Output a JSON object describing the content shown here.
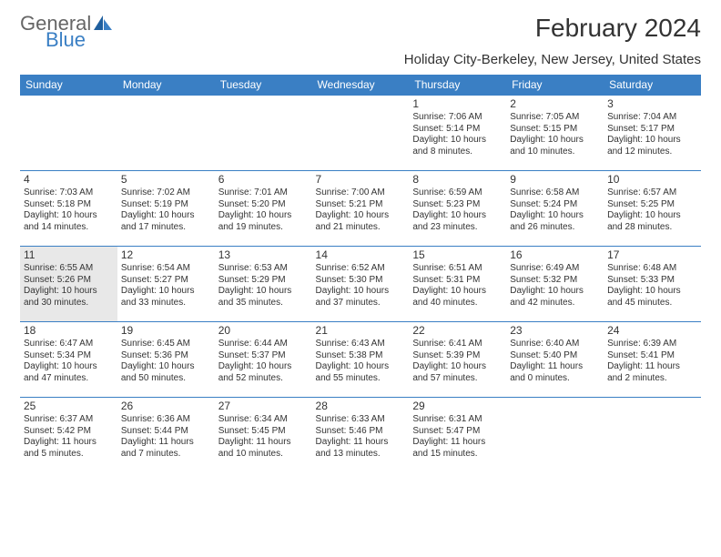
{
  "logo": {
    "part1": "General",
    "part2": "Blue"
  },
  "title": "February 2024",
  "subtitle": "Holiday City-Berkeley, New Jersey, United States",
  "colors": {
    "header_bg": "#3a7fc4",
    "header_text": "#ffffff",
    "border": "#3a7fc4",
    "today_bg": "#e8e8e8",
    "text": "#333333"
  },
  "day_headers": [
    "Sunday",
    "Monday",
    "Tuesday",
    "Wednesday",
    "Thursday",
    "Friday",
    "Saturday"
  ],
  "weeks": [
    [
      null,
      null,
      null,
      null,
      {
        "n": "1",
        "sr": "7:06 AM",
        "ss": "5:14 PM",
        "dl": "10 hours and 8 minutes."
      },
      {
        "n": "2",
        "sr": "7:05 AM",
        "ss": "5:15 PM",
        "dl": "10 hours and 10 minutes."
      },
      {
        "n": "3",
        "sr": "7:04 AM",
        "ss": "5:17 PM",
        "dl": "10 hours and 12 minutes."
      }
    ],
    [
      {
        "n": "4",
        "sr": "7:03 AM",
        "ss": "5:18 PM",
        "dl": "10 hours and 14 minutes."
      },
      {
        "n": "5",
        "sr": "7:02 AM",
        "ss": "5:19 PM",
        "dl": "10 hours and 17 minutes."
      },
      {
        "n": "6",
        "sr": "7:01 AM",
        "ss": "5:20 PM",
        "dl": "10 hours and 19 minutes."
      },
      {
        "n": "7",
        "sr": "7:00 AM",
        "ss": "5:21 PM",
        "dl": "10 hours and 21 minutes."
      },
      {
        "n": "8",
        "sr": "6:59 AM",
        "ss": "5:23 PM",
        "dl": "10 hours and 23 minutes."
      },
      {
        "n": "9",
        "sr": "6:58 AM",
        "ss": "5:24 PM",
        "dl": "10 hours and 26 minutes."
      },
      {
        "n": "10",
        "sr": "6:57 AM",
        "ss": "5:25 PM",
        "dl": "10 hours and 28 minutes."
      }
    ],
    [
      {
        "n": "11",
        "sr": "6:55 AM",
        "ss": "5:26 PM",
        "dl": "10 hours and 30 minutes.",
        "today": true
      },
      {
        "n": "12",
        "sr": "6:54 AM",
        "ss": "5:27 PM",
        "dl": "10 hours and 33 minutes."
      },
      {
        "n": "13",
        "sr": "6:53 AM",
        "ss": "5:29 PM",
        "dl": "10 hours and 35 minutes."
      },
      {
        "n": "14",
        "sr": "6:52 AM",
        "ss": "5:30 PM",
        "dl": "10 hours and 37 minutes."
      },
      {
        "n": "15",
        "sr": "6:51 AM",
        "ss": "5:31 PM",
        "dl": "10 hours and 40 minutes."
      },
      {
        "n": "16",
        "sr": "6:49 AM",
        "ss": "5:32 PM",
        "dl": "10 hours and 42 minutes."
      },
      {
        "n": "17",
        "sr": "6:48 AM",
        "ss": "5:33 PM",
        "dl": "10 hours and 45 minutes."
      }
    ],
    [
      {
        "n": "18",
        "sr": "6:47 AM",
        "ss": "5:34 PM",
        "dl": "10 hours and 47 minutes."
      },
      {
        "n": "19",
        "sr": "6:45 AM",
        "ss": "5:36 PM",
        "dl": "10 hours and 50 minutes."
      },
      {
        "n": "20",
        "sr": "6:44 AM",
        "ss": "5:37 PM",
        "dl": "10 hours and 52 minutes."
      },
      {
        "n": "21",
        "sr": "6:43 AM",
        "ss": "5:38 PM",
        "dl": "10 hours and 55 minutes."
      },
      {
        "n": "22",
        "sr": "6:41 AM",
        "ss": "5:39 PM",
        "dl": "10 hours and 57 minutes."
      },
      {
        "n": "23",
        "sr": "6:40 AM",
        "ss": "5:40 PM",
        "dl": "11 hours and 0 minutes."
      },
      {
        "n": "24",
        "sr": "6:39 AM",
        "ss": "5:41 PM",
        "dl": "11 hours and 2 minutes."
      }
    ],
    [
      {
        "n": "25",
        "sr": "6:37 AM",
        "ss": "5:42 PM",
        "dl": "11 hours and 5 minutes."
      },
      {
        "n": "26",
        "sr": "6:36 AM",
        "ss": "5:44 PM",
        "dl": "11 hours and 7 minutes."
      },
      {
        "n": "27",
        "sr": "6:34 AM",
        "ss": "5:45 PM",
        "dl": "11 hours and 10 minutes."
      },
      {
        "n": "28",
        "sr": "6:33 AM",
        "ss": "5:46 PM",
        "dl": "11 hours and 13 minutes."
      },
      {
        "n": "29",
        "sr": "6:31 AM",
        "ss": "5:47 PM",
        "dl": "11 hours and 15 minutes."
      },
      null,
      null
    ]
  ],
  "labels": {
    "sunrise": "Sunrise:",
    "sunset": "Sunset:",
    "daylight": "Daylight:"
  }
}
